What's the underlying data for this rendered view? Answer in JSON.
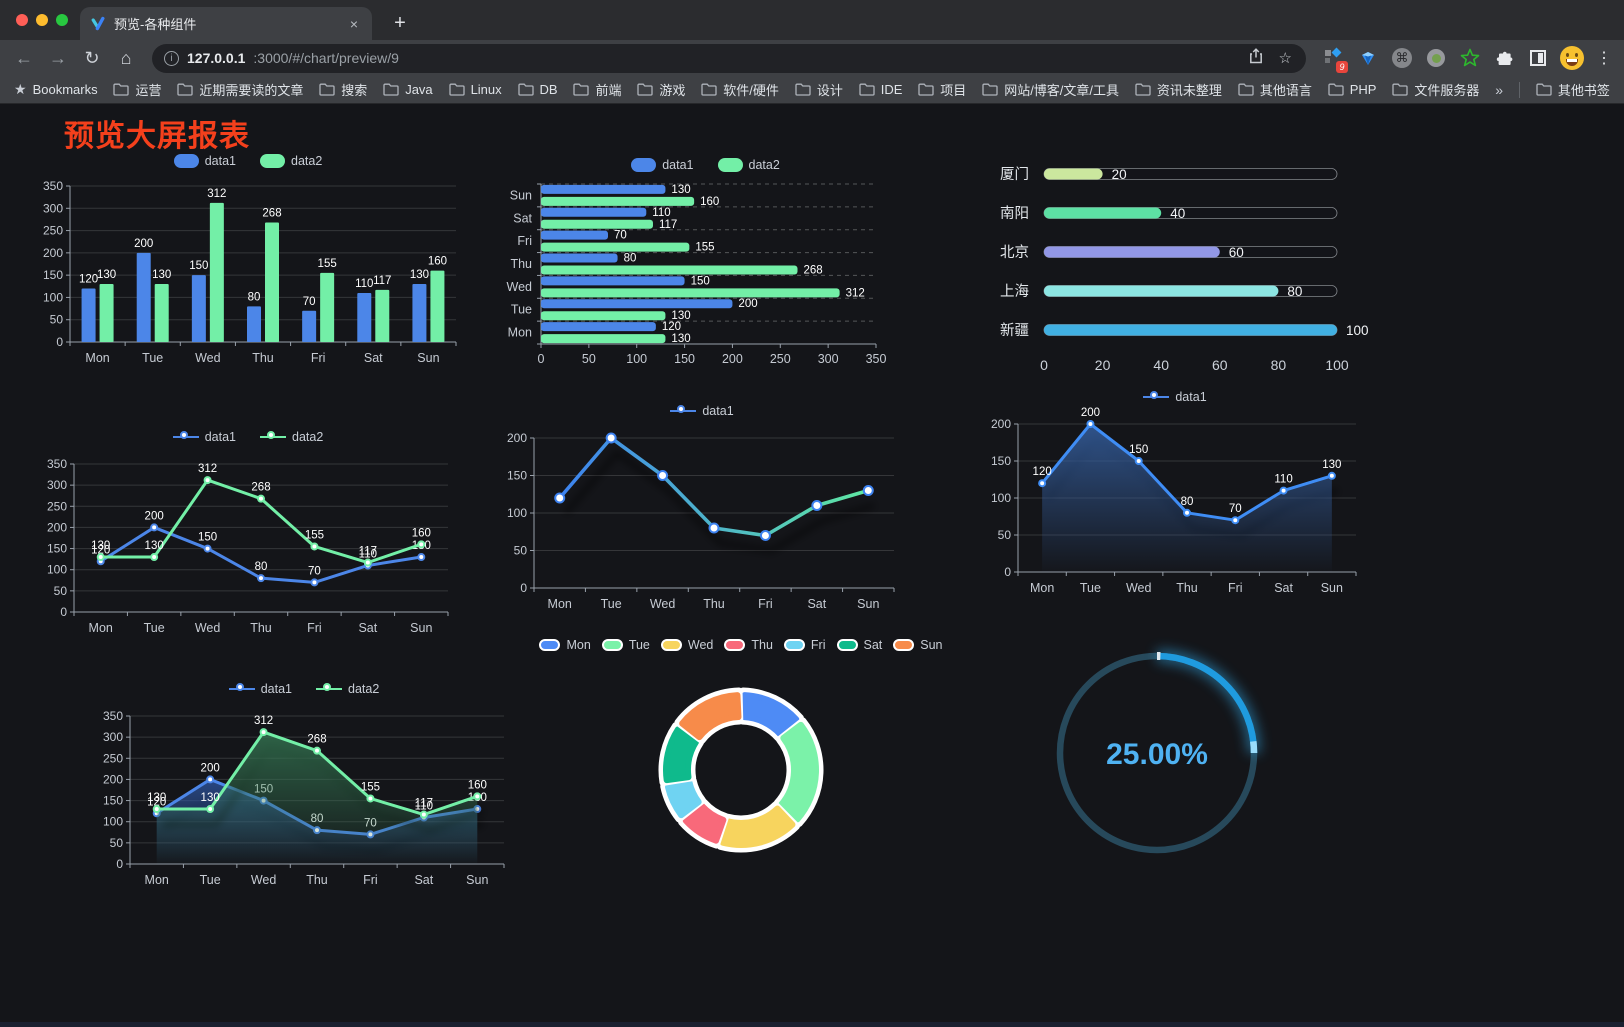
{
  "browser": {
    "tab": {
      "title": "预览-各种组件",
      "close_label": "×",
      "new_tab_label": "+"
    },
    "address": {
      "host": "127.0.0.1",
      "path": ":3000/#/chart/preview/9"
    },
    "extensions_badge": "9",
    "bookmarks": {
      "root_label": "Bookmarks",
      "folders": [
        "运营",
        "近期需要读的文章",
        "搜索",
        "Java",
        "Linux",
        "DB",
        "前端",
        "游戏",
        "软件/硬件",
        "设计",
        "IDE",
        "项目",
        "网站/博客/文章/工具",
        "资讯未整理",
        "其他语言",
        "PHP",
        "文件服务器"
      ],
      "overflow_label": "»",
      "other_label": "其他书签"
    }
  },
  "page": {
    "title": "预览大屏报表"
  },
  "chart_data": [
    {
      "id": "bar-vertical",
      "type": "bar",
      "categories": [
        "Mon",
        "Tue",
        "Wed",
        "Thu",
        "Fri",
        "Sat",
        "Sun"
      ],
      "series": [
        {
          "name": "data1",
          "color": "#4c86e8",
          "values": [
            120,
            200,
            150,
            80,
            70,
            110,
            130
          ]
        },
        {
          "name": "data2",
          "color": "#73efa7",
          "values": [
            130,
            130,
            312,
            268,
            155,
            117,
            160
          ]
        }
      ],
      "legend_items": [
        {
          "label": "data1",
          "color": "#4c86e8",
          "icon": "rect"
        },
        {
          "label": "data2",
          "color": "#73efa7",
          "icon": "rect"
        }
      ],
      "ylim": [
        0,
        350
      ],
      "yticks": [
        0,
        50,
        100,
        150,
        200,
        250,
        300,
        350
      ],
      "value_labels": true
    },
    {
      "id": "bar-horizontal",
      "type": "hbar",
      "categories_top_to_bottom": [
        "Sun",
        "Sat",
        "Fri",
        "Thu",
        "Wed",
        "Tue",
        "Mon"
      ],
      "series": [
        {
          "name": "data1",
          "color": "#4c86e8",
          "values": [
            130,
            110,
            70,
            80,
            150,
            200,
            120
          ]
        },
        {
          "name": "data2",
          "color": "#73efa7",
          "values": [
            160,
            117,
            155,
            268,
            312,
            130,
            130
          ]
        }
      ],
      "legend_items": [
        {
          "label": "data1",
          "color": "#4c86e8",
          "icon": "rect"
        },
        {
          "label": "data2",
          "color": "#73efa7",
          "icon": "rect"
        }
      ],
      "xlim": [
        0,
        350
      ],
      "xticks": [
        0,
        50,
        100,
        150,
        200,
        250,
        300,
        350
      ],
      "value_labels": true
    },
    {
      "id": "capsule",
      "type": "bar-capsule",
      "max": 100,
      "xticks": [
        0,
        20,
        40,
        60,
        80,
        100
      ],
      "rows": [
        {
          "label": "厦门",
          "value": 20,
          "color": "#cbe79e"
        },
        {
          "label": "南阳",
          "value": 40,
          "color": "#5de0a4"
        },
        {
          "label": "北京",
          "value": 60,
          "color": "#9297e6"
        },
        {
          "label": "上海",
          "value": 80,
          "color": "#8ce5e2"
        },
        {
          "label": "新疆",
          "value": 100,
          "color": "#41b0e2"
        }
      ]
    },
    {
      "id": "line-two",
      "type": "line",
      "categories": [
        "Mon",
        "Tue",
        "Wed",
        "Thu",
        "Fri",
        "Sat",
        "Sun"
      ],
      "series": [
        {
          "name": "data1",
          "color": "#4c86e8",
          "values": [
            120,
            200,
            150,
            80,
            70,
            110,
            130
          ],
          "labels": true
        },
        {
          "name": "data2",
          "color": "#73efa7",
          "values": [
            130,
            130,
            312,
            268,
            155,
            117,
            160
          ],
          "labels": true
        }
      ],
      "legend_items": [
        {
          "label": "data1",
          "color": "#4c86e8",
          "icon": "line"
        },
        {
          "label": "data2",
          "color": "#73efa7",
          "icon": "line"
        }
      ],
      "ylim": [
        0,
        350
      ],
      "yticks": [
        0,
        50,
        100,
        150,
        200,
        250,
        300,
        350
      ]
    },
    {
      "id": "line-gradient",
      "type": "line",
      "categories": [
        "Mon",
        "Tue",
        "Wed",
        "Thu",
        "Fri",
        "Sat",
        "Sun"
      ],
      "series": [
        {
          "name": "data1",
          "color": "#3d82f0",
          "gradient": [
            "#3d82f0",
            "#5fe8a2"
          ],
          "values": [
            120,
            200,
            150,
            80,
            70,
            110,
            130
          ],
          "shadow": true,
          "big_markers": true
        }
      ],
      "legend_items": [
        {
          "label": "data1",
          "color": "#4c86e8",
          "icon": "line"
        }
      ],
      "ylim": [
        0,
        200
      ],
      "yticks": [
        0,
        50,
        100,
        150,
        200
      ]
    },
    {
      "id": "area-one",
      "type": "line",
      "categories": [
        "Mon",
        "Tue",
        "Wed",
        "Thu",
        "Fri",
        "Sat",
        "Sun"
      ],
      "series": [
        {
          "name": "data1",
          "color": "#3f8df5",
          "area": [
            "rgba(52,94,158,0.85)",
            "rgba(52,94,158,0.02)"
          ],
          "values": [
            120,
            200,
            150,
            80,
            70,
            110,
            130
          ],
          "labels": true,
          "shadow": true
        }
      ],
      "legend_items": [
        {
          "label": "data1",
          "color": "#4c86e8",
          "icon": "line"
        }
      ],
      "ylim": [
        0,
        200
      ],
      "yticks": [
        0,
        50,
        100,
        150,
        200
      ]
    },
    {
      "id": "area-two",
      "type": "line",
      "categories": [
        "Mon",
        "Tue",
        "Wed",
        "Thu",
        "Fri",
        "Sat",
        "Sun"
      ],
      "series": [
        {
          "name": "data1",
          "color": "#4c86e8",
          "area": [
            "rgba(47,88,166,0.75)",
            "rgba(47,88,166,0.02)"
          ],
          "values": [
            120,
            200,
            150,
            80,
            70,
            110,
            130
          ],
          "labels": true,
          "shadow": true
        },
        {
          "name": "data2",
          "color": "#73efa7",
          "area": [
            "rgba(52,118,82,0.8)",
            "rgba(52,118,82,0.02)"
          ],
          "values": [
            130,
            130,
            312,
            268,
            155,
            117,
            160
          ],
          "labels": true,
          "shadow": true
        }
      ],
      "legend_items": [
        {
          "label": "data1",
          "color": "#4c86e8",
          "icon": "line"
        },
        {
          "label": "data2",
          "color": "#73efa7",
          "icon": "line"
        }
      ],
      "ylim": [
        0,
        350
      ],
      "yticks": [
        0,
        50,
        100,
        150,
        200,
        250,
        300,
        350
      ]
    },
    {
      "id": "donut",
      "type": "donut",
      "items": [
        {
          "label": "Mon",
          "value": 120,
          "color": "#4e8bf5"
        },
        {
          "label": "Tue",
          "value": 200,
          "color": "#7bf2a9"
        },
        {
          "label": "Wed",
          "value": 150,
          "color": "#f7d45e"
        },
        {
          "label": "Thu",
          "value": 80,
          "color": "#f8697a"
        },
        {
          "label": "Fri",
          "value": 70,
          "color": "#6fd3f2"
        },
        {
          "label": "Sat",
          "value": 110,
          "color": "#0fba8c"
        },
        {
          "label": "Sun",
          "value": 130,
          "color": "#f78b4a"
        }
      ],
      "legend_items": [
        {
          "label": "Mon",
          "color": "#4e8bf5",
          "icon": "rect-bordered"
        },
        {
          "label": "Tue",
          "color": "#7bf2a9",
          "icon": "rect-bordered"
        },
        {
          "label": "Wed",
          "color": "#f7d45e",
          "icon": "rect-bordered"
        },
        {
          "label": "Thu",
          "color": "#f8697a",
          "icon": "rect-bordered"
        },
        {
          "label": "Fri",
          "color": "#6fd3f2",
          "icon": "rect-bordered"
        },
        {
          "label": "Sat",
          "color": "#0fba8c",
          "icon": "rect-bordered"
        },
        {
          "label": "Sun",
          "color": "#f78b4a",
          "icon": "rect-bordered"
        }
      ]
    },
    {
      "id": "gauge",
      "type": "gauge",
      "value": 25,
      "display": "25.00%",
      "color": "#1f9bdf",
      "tip_color": "#9adcfa",
      "track": "#27495b",
      "text_color": "#4fb2f2"
    }
  ]
}
